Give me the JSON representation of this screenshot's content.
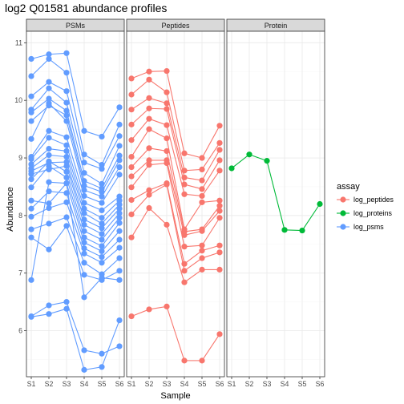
{
  "chart_data": {
    "type": "line",
    "title": "log2 Q01581 abundance profiles",
    "xlabel": "Sample",
    "ylabel": "Abundance",
    "categories": [
      "S1",
      "S2",
      "S3",
      "S4",
      "S5",
      "S6"
    ],
    "ylim": [
      5.2,
      11.2
    ],
    "yticks": [
      6,
      7,
      8,
      9,
      10,
      11
    ],
    "grid": true,
    "legend": {
      "title": "assay",
      "position": "right",
      "entries": [
        {
          "label": "log_peptides",
          "color": "#F8766D"
        },
        {
          "label": "log_proteins",
          "color": "#00BA38"
        },
        {
          "label": "log_psms",
          "color": "#619CFF"
        }
      ]
    },
    "panels": [
      {
        "label": "PSMs",
        "assay": "log_psms",
        "color": "#619CFF",
        "series": [
          [
            10.72,
            10.8,
            10.82,
            9.47,
            9.37,
            9.88
          ],
          [
            10.42,
            10.72,
            10.48,
            9.06,
            8.88,
            9.58
          ],
          [
            10.07,
            10.32,
            10.16,
            8.92,
            8.81,
            9.38
          ],
          [
            9.84,
            10.21,
            9.96,
            8.74,
            8.55,
            9.21
          ],
          [
            9.79,
            10.03,
            9.82,
            8.6,
            8.47,
            9.04
          ],
          [
            9.64,
            9.91,
            9.74,
            8.52,
            8.41,
            8.96
          ],
          [
            9.33,
            9.95,
            9.64,
            8.44,
            8.33,
            8.84
          ],
          [
            9.02,
            9.47,
            9.36,
            8.34,
            8.22,
            8.71
          ],
          [
            8.98,
            9.35,
            9.22,
            8.22,
            8.09,
            8.33
          ],
          [
            8.89,
            9.16,
            9.12,
            8.12,
            7.96,
            8.26
          ],
          [
            8.82,
            9.05,
            9.02,
            8.04,
            7.86,
            8.19
          ],
          [
            8.77,
            8.92,
            8.93,
            7.93,
            7.78,
            8.12
          ],
          [
            8.72,
            8.8,
            8.86,
            7.84,
            7.68,
            8.04
          ],
          [
            8.63,
            8.94,
            8.76,
            7.73,
            7.58,
            7.96
          ],
          [
            8.49,
            8.86,
            8.66,
            7.62,
            7.47,
            7.87
          ],
          [
            8.26,
            8.21,
            8.56,
            7.53,
            7.38,
            7.73
          ],
          [
            8.12,
            8.42,
            8.39,
            7.43,
            7.28,
            7.58
          ],
          [
            7.98,
            8.13,
            8.23,
            7.34,
            7.18,
            7.44
          ],
          [
            7.76,
            7.86,
            7.97,
            7.18,
            6.98,
            7.26
          ],
          [
            7.62,
            7.41,
            7.82,
            6.97,
            6.88,
            7.04
          ],
          [
            6.88,
            8.58,
            8.56,
            6.58,
            6.92,
            6.88
          ],
          [
            6.25,
            6.44,
            6.5,
            5.66,
            5.6,
            5.73
          ],
          [
            6.24,
            6.29,
            6.38,
            5.32,
            5.37,
            6.18
          ]
        ]
      },
      {
        "label": "Peptides",
        "assay": "log_peptides",
        "color": "#F8766D",
        "series": [
          [
            10.38,
            10.5,
            10.51,
            9.08,
            9.0,
            9.56
          ],
          [
            10.1,
            10.36,
            10.14,
            8.78,
            8.8,
            9.26
          ],
          [
            9.84,
            10.04,
            9.95,
            8.66,
            8.61,
            9.14
          ],
          [
            9.58,
            9.86,
            9.85,
            8.54,
            8.46,
            8.96
          ],
          [
            9.31,
            9.68,
            9.57,
            8.37,
            8.34,
            8.78
          ],
          [
            9.02,
            9.5,
            9.34,
            7.76,
            8.23,
            8.26
          ],
          [
            8.84,
            9.17,
            9.12,
            7.72,
            7.76,
            8.17
          ],
          [
            8.68,
            8.96,
            8.96,
            7.66,
            7.73,
            8.08
          ],
          [
            8.49,
            8.88,
            8.91,
            7.46,
            7.48,
            7.96
          ],
          [
            8.27,
            8.44,
            8.56,
            7.16,
            7.39,
            7.48
          ],
          [
            8.02,
            8.36,
            8.54,
            7.04,
            7.26,
            7.36
          ],
          [
            7.62,
            8.13,
            7.84,
            6.84,
            7.06,
            7.06
          ],
          [
            6.25,
            6.37,
            6.42,
            5.48,
            5.48,
            5.94
          ]
        ]
      },
      {
        "label": "Protein",
        "assay": "log_proteins",
        "color": "#00BA38",
        "series": [
          [
            8.82,
            9.06,
            8.95,
            7.75,
            7.74,
            8.2
          ]
        ]
      }
    ]
  }
}
